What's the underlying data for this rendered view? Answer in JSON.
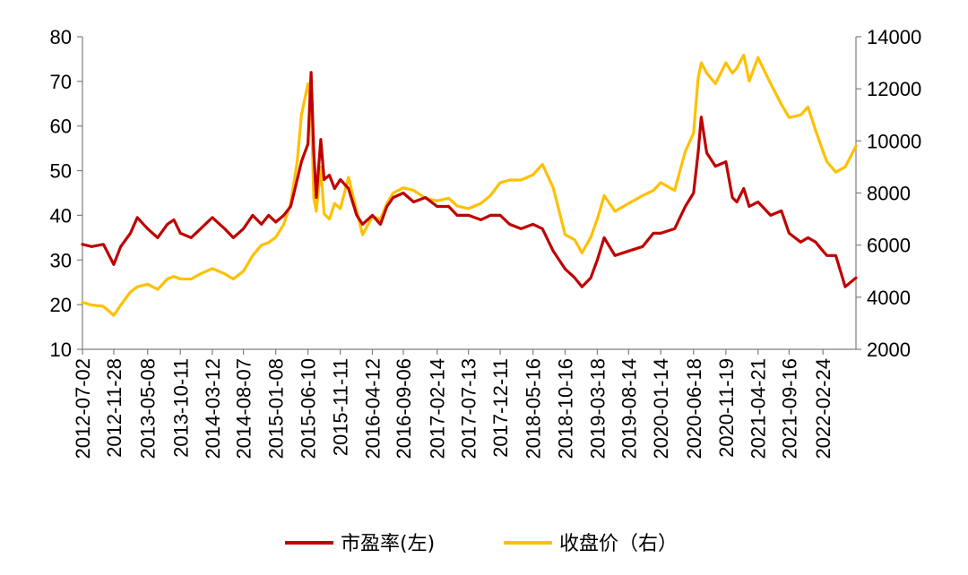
{
  "chart_data": {
    "type": "line",
    "title": "",
    "xlabel": "",
    "ylabel_left": "",
    "ylabel_right": "",
    "grid": false,
    "legend_position": "bottom-center",
    "ylim_left": [
      10,
      80
    ],
    "ylim_right": [
      2000,
      14000
    ],
    "yticks_left": [
      10,
      20,
      30,
      40,
      50,
      60,
      70,
      80
    ],
    "yticks_right": [
      2000,
      4000,
      6000,
      8000,
      10000,
      12000,
      14000
    ],
    "ytick_labels_left": [
      "10",
      "20",
      "30",
      "40",
      "50",
      "60",
      "70",
      "80"
    ],
    "ytick_labels_right": [
      "2000",
      "4000",
      "6000",
      "8000",
      "10000",
      "12000",
      "14000"
    ],
    "x_tick_labels": [
      "2012-07-02",
      "2012-11-28",
      "2013-05-08",
      "2013-10-11",
      "2014-03-12",
      "2014-08-07",
      "2015-01-08",
      "2015-06-10",
      "2015-11-11",
      "2016-04-12",
      "2016-09-06",
      "2017-02-14",
      "2017-07-13",
      "2017-12-11",
      "2018-05-16",
      "2018-10-16",
      "2019-03-18",
      "2019-08-14",
      "2020-01-14",
      "2020-06-18",
      "2020-11-19",
      "2021-04-21",
      "2021-09-16",
      "2022-02-24"
    ],
    "x_range": [
      "2012-07-02",
      "2022-07-31"
    ],
    "series": [
      {
        "name": "市盈率(左)",
        "axis": "left",
        "color": "#C00000",
        "x": [
          "2012-07-02",
          "2012-08-15",
          "2012-10-10",
          "2012-11-28",
          "2012-12-31",
          "2013-02-15",
          "2013-03-20",
          "2013-05-08",
          "2013-06-25",
          "2013-08-10",
          "2013-09-10",
          "2013-10-11",
          "2013-12-01",
          "2014-01-15",
          "2014-03-12",
          "2014-05-10",
          "2014-06-20",
          "2014-08-07",
          "2014-09-20",
          "2014-11-01",
          "2014-12-05",
          "2015-01-08",
          "2015-02-15",
          "2015-03-20",
          "2015-04-20",
          "2015-05-10",
          "2015-06-10",
          "2015-06-25",
          "2015-07-08",
          "2015-07-20",
          "2015-08-10",
          "2015-08-26",
          "2015-09-20",
          "2015-10-15",
          "2015-11-11",
          "2015-12-20",
          "2016-01-28",
          "2016-02-25",
          "2016-04-12",
          "2016-05-20",
          "2016-06-20",
          "2016-07-20",
          "2016-09-06",
          "2016-10-25",
          "2016-12-20",
          "2017-02-14",
          "2017-04-10",
          "2017-05-20",
          "2017-07-13",
          "2017-09-10",
          "2017-10-25",
          "2017-12-11",
          "2018-01-25",
          "2018-03-20",
          "2018-05-16",
          "2018-06-30",
          "2018-08-20",
          "2018-10-16",
          "2018-12-01",
          "2019-01-04",
          "2019-02-15",
          "2019-03-18",
          "2019-04-20",
          "2019-06-10",
          "2019-08-14",
          "2019-10-20",
          "2019-12-10",
          "2020-01-14",
          "2020-03-20",
          "2020-05-10",
          "2020-06-18",
          "2020-07-10",
          "2020-07-25",
          "2020-08-20",
          "2020-09-30",
          "2020-11-19",
          "2020-12-20",
          "2021-01-10",
          "2021-02-12",
          "2021-03-10",
          "2021-04-21",
          "2021-06-20",
          "2021-08-10",
          "2021-09-16",
          "2021-11-10",
          "2021-12-15",
          "2022-01-20",
          "2022-02-24",
          "2022-03-15",
          "2022-04-26",
          "2022-06-10",
          "2022-07-31"
        ],
        "values": [
          33.5,
          33.0,
          33.5,
          29,
          33,
          36,
          39.5,
          37,
          35,
          38,
          39,
          36,
          35,
          37,
          39.5,
          37,
          35,
          37,
          40,
          38,
          40,
          38.5,
          40,
          42,
          48,
          52,
          56,
          72,
          54,
          44,
          57,
          48,
          49,
          46,
          48,
          46,
          40,
          38,
          40,
          38,
          42,
          44,
          45,
          43,
          44,
          42,
          42,
          40,
          40,
          39,
          40,
          40,
          38,
          37,
          38,
          37,
          32,
          28,
          26,
          24,
          26,
          30,
          35,
          31,
          32,
          33,
          36,
          36,
          37,
          42,
          45,
          54,
          62,
          54,
          51,
          52,
          44,
          43,
          46,
          42,
          43,
          40,
          41,
          36,
          34,
          35,
          34,
          32,
          31,
          31,
          24,
          26
        ]
      },
      {
        "name": "收盘价（右）",
        "axis": "right",
        "color": "#FFC000",
        "x": [
          "2012-07-02",
          "2012-08-15",
          "2012-10-10",
          "2012-11-28",
          "2012-12-31",
          "2013-02-15",
          "2013-03-20",
          "2013-05-08",
          "2013-06-25",
          "2013-08-10",
          "2013-09-10",
          "2013-10-11",
          "2013-12-01",
          "2014-01-15",
          "2014-03-12",
          "2014-05-10",
          "2014-06-20",
          "2014-08-07",
          "2014-09-20",
          "2014-11-01",
          "2014-12-05",
          "2015-01-08",
          "2015-02-15",
          "2015-03-20",
          "2015-04-20",
          "2015-05-10",
          "2015-06-10",
          "2015-06-25",
          "2015-07-08",
          "2015-07-20",
          "2015-08-10",
          "2015-08-26",
          "2015-09-20",
          "2015-10-15",
          "2015-11-11",
          "2015-12-20",
          "2016-01-28",
          "2016-02-25",
          "2016-04-12",
          "2016-05-20",
          "2016-06-20",
          "2016-07-20",
          "2016-09-06",
          "2016-10-25",
          "2016-12-20",
          "2017-02-14",
          "2017-04-10",
          "2017-05-20",
          "2017-07-13",
          "2017-09-10",
          "2017-10-25",
          "2017-12-11",
          "2018-01-25",
          "2018-03-20",
          "2018-05-16",
          "2018-06-30",
          "2018-08-20",
          "2018-10-16",
          "2018-12-01",
          "2019-01-04",
          "2019-02-15",
          "2019-03-18",
          "2019-04-20",
          "2019-06-10",
          "2019-08-14",
          "2019-10-20",
          "2019-12-10",
          "2020-01-14",
          "2020-03-20",
          "2020-05-10",
          "2020-06-18",
          "2020-07-10",
          "2020-07-25",
          "2020-08-20",
          "2020-09-30",
          "2020-11-19",
          "2020-12-20",
          "2021-01-10",
          "2021-02-12",
          "2021-03-10",
          "2021-04-21",
          "2021-06-20",
          "2021-08-10",
          "2021-09-16",
          "2021-11-10",
          "2021-12-15",
          "2022-01-20",
          "2022-02-24",
          "2022-03-15",
          "2022-04-26",
          "2022-06-10",
          "2022-07-31"
        ],
        "values": [
          3800,
          3700,
          3650,
          3300,
          3700,
          4200,
          4400,
          4500,
          4300,
          4700,
          4800,
          4700,
          4700,
          4900,
          5100,
          4900,
          4700,
          5000,
          5600,
          6000,
          6100,
          6300,
          6800,
          7600,
          9200,
          11000,
          12200,
          11500,
          7800,
          7300,
          9000,
          7200,
          7000,
          7600,
          7400,
          8600,
          7300,
          6400,
          7100,
          7000,
          7600,
          8000,
          8200,
          8100,
          7800,
          7700,
          7800,
          7500,
          7400,
          7600,
          7900,
          8400,
          8500,
          8500,
          8700,
          9100,
          8200,
          6400,
          6200,
          5700,
          6300,
          7000,
          7900,
          7300,
          7600,
          7900,
          8100,
          8400,
          8100,
          9600,
          10300,
          12400,
          13000,
          12600,
          12200,
          13000,
          12600,
          12800,
          13300,
          12300,
          13200,
          12200,
          11400,
          10900,
          11000,
          11300,
          10400,
          9600,
          9200,
          8800,
          9000,
          9800
        ]
      }
    ]
  }
}
